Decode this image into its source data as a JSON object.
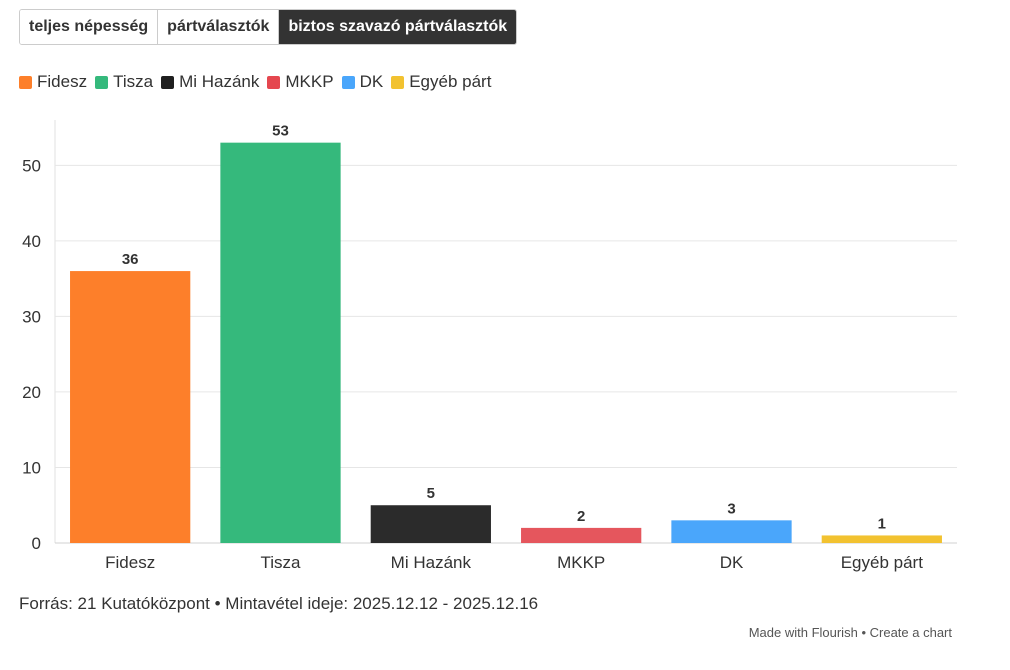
{
  "tabs": [
    {
      "label": "teljes népesség",
      "active": false
    },
    {
      "label": "pártválasztók",
      "active": false
    },
    {
      "label": "biztos szavazó pártválasztók",
      "active": true
    }
  ],
  "legend": [
    {
      "label": "Fidesz",
      "color": "#fd7f2a"
    },
    {
      "label": "Tisza",
      "color": "#35b97c"
    },
    {
      "label": "Mi Hazánk",
      "color": "#1f1f1f"
    },
    {
      "label": "MKKP",
      "color": "#e5474f"
    },
    {
      "label": "DK",
      "color": "#4aa6fb"
    },
    {
      "label": "Egyéb párt",
      "color": "#f2c230"
    }
  ],
  "chart_data": {
    "type": "bar",
    "categories": [
      "Fidesz",
      "Tisza",
      "Mi Hazánk",
      "MKKP",
      "DK",
      "Egyéb párt"
    ],
    "values": [
      36,
      53,
      5,
      2,
      3,
      1
    ],
    "colors": [
      "#fd7f2a",
      "#35b97c",
      "#2b2b2b",
      "#e5565d",
      "#4aa6fb",
      "#f2c230"
    ],
    "ylim": [
      0,
      56
    ],
    "yticks": [
      0,
      10,
      20,
      30,
      40,
      50
    ],
    "grid": true,
    "legend_position": "top-left"
  },
  "footer": {
    "source": "Forrás: 21 Kutatóközpont • Mintavétel ideje: 2025.12.12 - 2025.12.16",
    "made_with": "Made with Flourish",
    "separator": "•",
    "create": "Create a chart"
  }
}
